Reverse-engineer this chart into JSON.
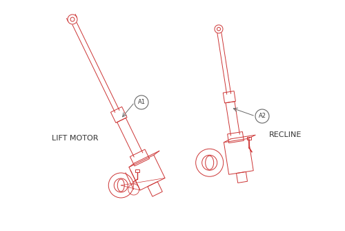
{
  "bg_color": "#ffffff",
  "line_color": "#cc3333",
  "label_color": "#333333",
  "callout_color": "#666666",
  "lift_motor_label": "LIFT MOTOR",
  "recline_label": "RECLINE",
  "a1_label": "A1",
  "a2_label": "A2",
  "figsize": [
    5.0,
    3.34
  ],
  "dpi": 100
}
